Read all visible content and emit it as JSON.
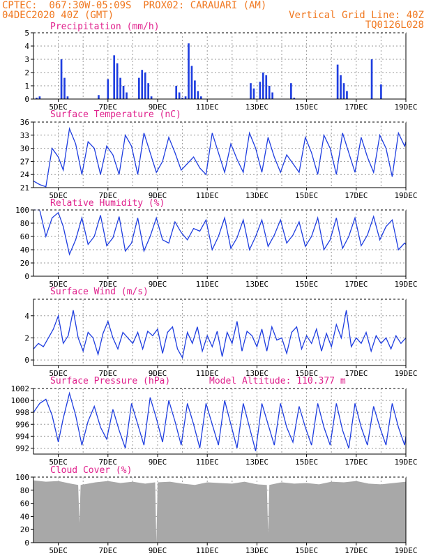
{
  "header": {
    "line1_left": "CPTEC:  067:30W-05:09S  PROX02: CARAUARI (AM)",
    "line2_left": "04DEC2020 40Z (GMT)",
    "line2_right": "Vertical Grid Line: 40Z",
    "line3_right": "TQ0126L028"
  },
  "colors": {
    "header": "#f07820",
    "title": "#e0208c",
    "line": "#1f3ee0",
    "cloud": "#a8a8a8",
    "grid": "#9a9a9a"
  },
  "chart_data": [
    {
      "type": "bar",
      "title": "Precipitation (mm/h)",
      "x_labels": [
        "5DEC",
        "7DEC",
        "9DEC",
        "11DEC",
        "13DEC",
        "15DEC",
        "17DEC",
        "19DEC"
      ],
      "yticks": [
        0,
        1,
        2,
        3,
        4,
        5
      ],
      "ylim": [
        0,
        5
      ],
      "x_start_day": 4.0,
      "x_step_day": 0.125,
      "values": [
        0,
        0.1,
        0.2,
        0,
        0,
        0,
        0,
        0,
        0,
        3.0,
        1.6,
        0.2,
        0,
        0,
        0,
        0,
        0,
        0,
        0,
        0,
        0,
        0.3,
        0,
        0,
        1.5,
        0,
        3.3,
        2.7,
        1.6,
        1.0,
        0.5,
        0,
        0,
        0,
        1.6,
        2.2,
        2.0,
        1.2,
        0.2,
        0,
        0,
        0,
        0,
        0,
        0,
        0,
        1.0,
        0.5,
        0.1,
        0.2,
        4.2,
        2.5,
        1.4,
        0.6,
        0.2,
        0,
        0,
        0,
        0,
        0,
        0,
        0,
        0,
        0,
        0,
        0,
        0,
        0,
        0,
        0,
        1.2,
        0.8,
        0,
        1.3,
        2.0,
        1.8,
        1.0,
        0.5,
        0,
        0,
        0,
        0,
        0,
        1.2,
        0.1,
        0,
        0,
        0,
        0,
        0,
        0,
        0,
        0,
        0,
        0,
        0,
        0,
        0,
        2.6,
        1.8,
        1.2,
        0.6,
        0,
        0,
        0,
        0,
        0,
        0,
        0,
        3.0,
        0,
        0,
        1.1,
        0,
        0,
        0,
        0,
        0,
        0,
        0,
        0,
        0,
        0,
        0,
        0,
        0,
        0,
        0,
        0,
        0,
        0,
        0,
        1.2,
        1.7,
        2.0,
        1.5,
        0.7,
        0,
        0,
        0,
        0,
        0,
        0,
        1.8,
        1.0,
        0,
        0,
        0,
        0,
        0,
        0,
        0,
        0,
        0,
        0,
        0,
        0.8,
        0.7,
        1.0,
        0,
        0,
        2.5,
        1.9,
        1.2,
        1.1,
        0.4,
        0,
        0,
        0,
        0,
        2.8,
        0,
        0,
        0,
        0,
        0,
        0,
        0,
        0,
        0,
        0,
        0,
        0,
        0,
        0
      ]
    },
    {
      "type": "line",
      "title": "Surface Temperature (nC)",
      "x_labels": [
        "5DEC",
        "7DEC",
        "9DEC",
        "11DEC",
        "13DEC",
        "15DEC",
        "17DEC",
        "19DEC"
      ],
      "yticks": [
        21,
        24,
        27,
        30,
        33,
        36
      ],
      "ylim": [
        21,
        36
      ],
      "x": [
        4.0,
        4.25,
        4.5,
        4.75,
        5.0,
        5.2,
        5.45,
        5.7,
        5.95,
        6.2,
        6.45,
        6.7,
        6.95,
        7.2,
        7.45,
        7.7,
        7.95,
        8.2,
        8.45,
        8.7,
        8.95,
        9.2,
        9.45,
        9.7,
        9.95,
        10.2,
        10.45,
        10.7,
        10.95,
        11.2,
        11.45,
        11.7,
        11.95,
        12.2,
        12.45,
        12.7,
        12.95,
        13.2,
        13.45,
        13.7,
        13.95,
        14.2,
        14.45,
        14.7,
        14.95,
        15.2,
        15.45,
        15.7,
        15.95,
        16.2,
        16.45,
        16.7,
        16.95,
        17.2,
        17.45,
        17.7,
        17.95,
        18.2,
        18.45,
        18.7,
        18.95,
        19.0
      ],
      "values": [
        22.5,
        21.7,
        21.2,
        30.0,
        28.0,
        25.0,
        34.5,
        31.0,
        24.0,
        31.5,
        30.0,
        24.0,
        30.5,
        28.5,
        24.0,
        33.0,
        30.5,
        24.0,
        33.5,
        29.0,
        24.5,
        27.0,
        32.5,
        29.0,
        25.0,
        26.5,
        28.0,
        25.5,
        24.0,
        33.5,
        29.0,
        24.5,
        31.0,
        27.5,
        24.5,
        33.5,
        30.0,
        24.5,
        32.5,
        28.0,
        24.5,
        28.5,
        26.5,
        24.5,
        32.5,
        29.0,
        24.0,
        33.0,
        30.0,
        24.0,
        33.5,
        29.0,
        24.5,
        32.5,
        28.0,
        24.5,
        33.0,
        30.0,
        23.5,
        33.5,
        30.5,
        31.5
      ]
    },
    {
      "type": "line",
      "title": "Relative Humidity (%)",
      "x_labels": [
        "5DEC",
        "7DEC",
        "9DEC",
        "11DEC",
        "13DEC",
        "15DEC",
        "17DEC",
        "19DEC"
      ],
      "yticks": [
        0,
        20,
        40,
        60,
        80,
        100
      ],
      "ylim": [
        0,
        100
      ],
      "x": [
        4.0,
        4.25,
        4.5,
        4.75,
        5.0,
        5.2,
        5.45,
        5.7,
        5.95,
        6.2,
        6.45,
        6.7,
        6.95,
        7.2,
        7.45,
        7.7,
        7.95,
        8.2,
        8.45,
        8.7,
        8.95,
        9.2,
        9.45,
        9.7,
        9.95,
        10.2,
        10.45,
        10.7,
        10.95,
        11.2,
        11.45,
        11.7,
        11.95,
        12.2,
        12.45,
        12.7,
        12.95,
        13.2,
        13.45,
        13.7,
        13.95,
        14.2,
        14.45,
        14.7,
        14.95,
        15.2,
        15.45,
        15.7,
        15.95,
        16.2,
        16.45,
        16.7,
        16.95,
        17.2,
        17.45,
        17.7,
        17.95,
        18.2,
        18.45,
        18.7,
        18.95,
        19.0
      ],
      "values": [
        100,
        100,
        60,
        88,
        96,
        75,
        33,
        55,
        88,
        48,
        60,
        92,
        46,
        58,
        90,
        38,
        50,
        88,
        38,
        60,
        88,
        55,
        50,
        82,
        66,
        55,
        72,
        68,
        85,
        40,
        60,
        88,
        42,
        58,
        85,
        40,
        60,
        85,
        45,
        62,
        85,
        50,
        62,
        82,
        45,
        60,
        88,
        40,
        55,
        88,
        42,
        60,
        88,
        46,
        62,
        90,
        55,
        75,
        85,
        40,
        50,
        48
      ]
    },
    {
      "type": "line",
      "title": "Surface Wind (m/s)",
      "x_labels": [
        "5DEC",
        "7DEC",
        "9DEC",
        "11DEC",
        "13DEC",
        "15DEC",
        "17DEC",
        "19DEC"
      ],
      "yticks": [
        0,
        2,
        4
      ],
      "ylim": [
        -0.5,
        5.5
      ],
      "x": [
        4.0,
        4.2,
        4.4,
        4.6,
        4.8,
        5.0,
        5.2,
        5.4,
        5.6,
        5.8,
        6.0,
        6.2,
        6.4,
        6.6,
        6.8,
        7.0,
        7.2,
        7.4,
        7.6,
        7.8,
        8.0,
        8.2,
        8.4,
        8.6,
        8.8,
        9.0,
        9.2,
        9.4,
        9.6,
        9.8,
        10.0,
        10.2,
        10.4,
        10.6,
        10.8,
        11.0,
        11.2,
        11.4,
        11.6,
        11.8,
        12.0,
        12.2,
        12.4,
        12.6,
        12.8,
        13.0,
        13.2,
        13.4,
        13.6,
        13.8,
        14.0,
        14.2,
        14.4,
        14.6,
        14.8,
        15.0,
        15.2,
        15.4,
        15.6,
        15.8,
        16.0,
        16.2,
        16.4,
        16.6,
        16.8,
        17.0,
        17.2,
        17.4,
        17.6,
        17.8,
        18.0,
        18.2,
        18.4,
        18.6,
        18.8,
        19.0
      ],
      "values": [
        1.0,
        1.5,
        1.2,
        2.0,
        2.8,
        4.0,
        1.5,
        2.2,
        4.5,
        2.0,
        0.8,
        2.5,
        2.0,
        0.5,
        2.4,
        3.5,
        2.0,
        1.0,
        2.5,
        2.0,
        1.5,
        2.5,
        1.0,
        2.6,
        2.2,
        2.8,
        0.6,
        2.5,
        3.0,
        1.0,
        0.2,
        2.5,
        1.5,
        3.0,
        0.8,
        2.2,
        1.2,
        2.6,
        0.3,
        2.5,
        1.5,
        3.5,
        0.8,
        2.6,
        2.2,
        1.2,
        2.8,
        0.8,
        3.0,
        1.8,
        2.0,
        0.6,
        2.5,
        3.0,
        1.0,
        2.2,
        1.5,
        2.8,
        0.8,
        2.4,
        1.2,
        3.2,
        2.0,
        4.5,
        1.2,
        2.0,
        1.5,
        2.5,
        0.8,
        2.2,
        1.5,
        2.0,
        1.0,
        2.2,
        1.5,
        2.0
      ]
    },
    {
      "type": "line",
      "title": "Surface Pressure (hPa)",
      "annotation": "Model Altitude: 110.377 m",
      "x_labels": [
        "5DEC",
        "7DEC",
        "9DEC",
        "11DEC",
        "13DEC",
        "15DEC",
        "17DEC",
        "19DEC"
      ],
      "yticks": [
        992,
        994,
        996,
        998,
        1000,
        1002
      ],
      "ylim": [
        991,
        1002
      ],
      "x": [
        4.0,
        4.25,
        4.5,
        4.75,
        5.0,
        5.2,
        5.45,
        5.7,
        5.95,
        6.2,
        6.45,
        6.7,
        6.95,
        7.2,
        7.45,
        7.7,
        7.95,
        8.2,
        8.45,
        8.7,
        8.95,
        9.2,
        9.45,
        9.7,
        9.95,
        10.2,
        10.45,
        10.7,
        10.95,
        11.2,
        11.45,
        11.7,
        11.95,
        12.2,
        12.45,
        12.7,
        12.95,
        13.2,
        13.45,
        13.7,
        13.95,
        14.2,
        14.45,
        14.7,
        14.95,
        15.2,
        15.45,
        15.7,
        15.95,
        16.2,
        16.45,
        16.7,
        16.95,
        17.2,
        17.45,
        17.7,
        17.95,
        18.2,
        18.45,
        18.7,
        18.95,
        19.0
      ],
      "values": [
        998.0,
        999.5,
        1000.2,
        997.5,
        993.0,
        997.0,
        1001.2,
        997.5,
        992.5,
        996.5,
        999.0,
        995.5,
        993.5,
        998.5,
        995.0,
        992.0,
        999.5,
        996.0,
        992.5,
        1000.5,
        997.0,
        993.0,
        1000.0,
        996.5,
        992.5,
        999.5,
        996.0,
        992.0,
        999.5,
        996.0,
        992.5,
        1000.0,
        996.0,
        992.0,
        999.5,
        995.5,
        991.5,
        999.5,
        996.0,
        992.5,
        999.5,
        995.5,
        993.0,
        999.0,
        995.5,
        992.5,
        999.5,
        995.5,
        992.5,
        999.5,
        995.0,
        992.0,
        999.5,
        995.5,
        992.5,
        999.0,
        995.5,
        992.5,
        999.5,
        995.5,
        992.5,
        994.0
      ]
    },
    {
      "type": "area",
      "title": "Cloud Cover (%)",
      "x_labels": [
        "5DEC",
        "7DEC",
        "9DEC",
        "11DEC",
        "13DEC",
        "15DEC",
        "17DEC",
        "19DEC"
      ],
      "yticks": [
        0,
        20,
        40,
        60,
        80,
        100
      ],
      "ylim": [
        0,
        100
      ],
      "x": [
        4.0,
        4.5,
        5.0,
        5.5,
        5.8,
        5.85,
        5.9,
        6.5,
        7.0,
        7.5,
        8.0,
        8.5,
        8.9,
        8.95,
        9.0,
        9.5,
        10.0,
        10.5,
        11.0,
        11.5,
        12.0,
        12.5,
        13.0,
        13.4,
        13.45,
        13.5,
        14.0,
        14.5,
        15.0,
        15.5,
        16.0,
        16.5,
        17.0,
        17.5,
        18.0,
        18.5,
        19.0
      ],
      "values": [
        95,
        93,
        94,
        90,
        88,
        30,
        88,
        92,
        94,
        91,
        93,
        90,
        92,
        0,
        92,
        93,
        90,
        88,
        92,
        91,
        90,
        93,
        89,
        88,
        15,
        88,
        92,
        90,
        91,
        89,
        93,
        92,
        94,
        90,
        89,
        91,
        93
      ]
    }
  ]
}
